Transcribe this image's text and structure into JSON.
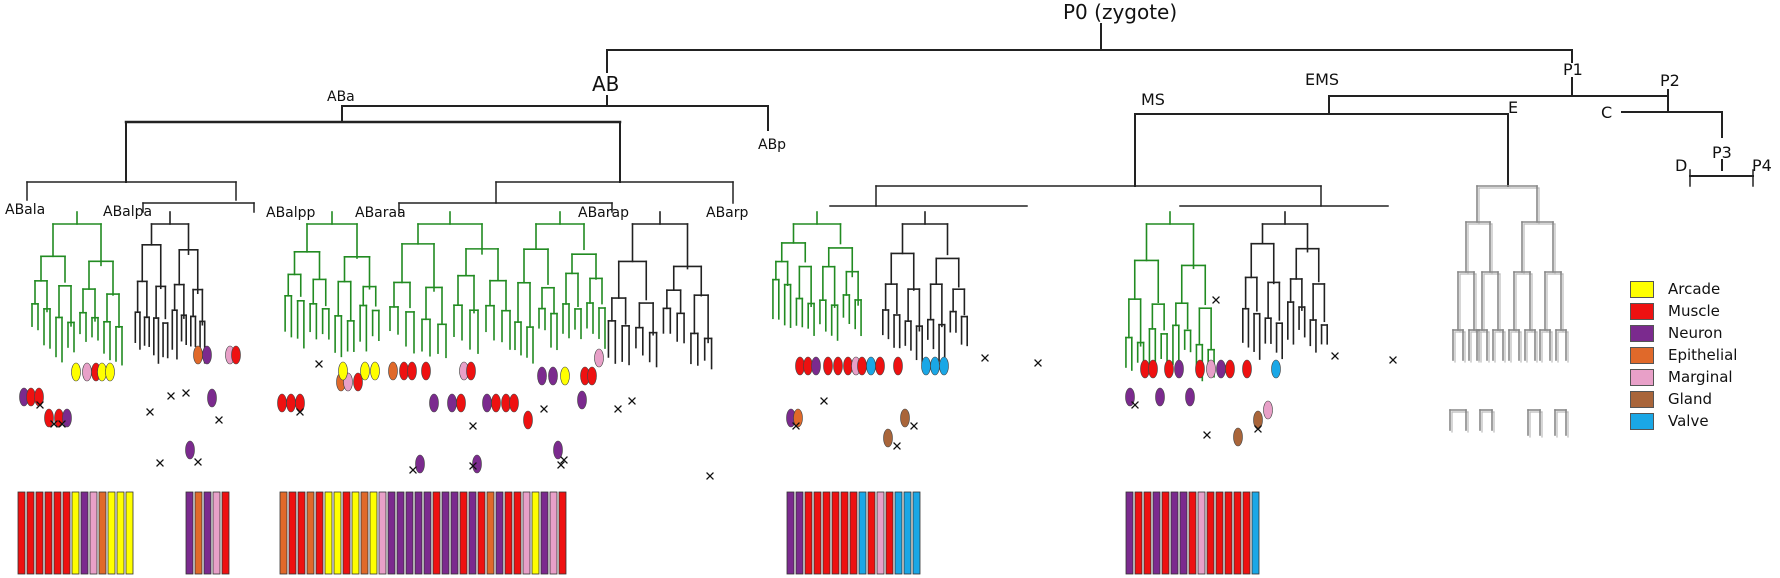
{
  "diagram": {
    "labels": {
      "root": "P0 (zygote)",
      "AB": "AB",
      "P1": "P1",
      "ABa": "ABa",
      "ABp": "ABp",
      "EMS": "EMS",
      "MS": "MS",
      "E": "E",
      "P2": "P2",
      "C": "C",
      "D": "D",
      "P3": "P3",
      "P4": "P4",
      "ABala": "ABala",
      "ABalpa": "ABalpa",
      "ABalpp": "ABalpp",
      "ABaraa": "ABaraa",
      "ABarap": "ABarap",
      "ABarp": "ABarp"
    }
  },
  "legend": [
    {
      "label": "Arcade",
      "color": "#ffff00"
    },
    {
      "label": "Muscle",
      "color": "#ee1111"
    },
    {
      "label": "Neuron",
      "color": "#7b2a8e"
    },
    {
      "label": "Epithelial",
      "color": "#e0692a"
    },
    {
      "label": "Marginal",
      "color": "#e8a0c8"
    },
    {
      "label": "Gland",
      "color": "#a9653a"
    },
    {
      "label": "Valve",
      "color": "#1aa7e6"
    }
  ],
  "bar_groups": [
    {
      "cells": [
        "Muscle",
        "Muscle",
        "Muscle",
        "Muscle",
        "Muscle",
        "Muscle",
        "Arcade",
        "Neuron",
        "Marginal",
        "Epithelial",
        "Arcade",
        "Arcade",
        "Arcade"
      ]
    },
    {
      "cells": [
        "Neuron",
        "Epithelial",
        "Neuron",
        "Marginal",
        "Muscle"
      ]
    },
    {
      "cells": [
        "Epithelial",
        "Muscle",
        "Muscle",
        "Epithelial",
        "Muscle",
        "Arcade",
        "Arcade",
        "Muscle",
        "Arcade",
        "Epithelial",
        "Arcade",
        "Marginal",
        "Neuron",
        "Neuron",
        "Neuron",
        "Neuron",
        "Neuron",
        "Muscle",
        "Neuron",
        "Neuron",
        "Muscle",
        "Neuron",
        "Muscle",
        "Epithelial",
        "Neuron",
        "Muscle",
        "Muscle",
        "Marginal",
        "Arcade",
        "Neuron",
        "Marginal",
        "Muscle"
      ]
    },
    {
      "cells": [
        "Neuron",
        "Neuron",
        "Muscle",
        "Muscle",
        "Muscle",
        "Muscle",
        "Muscle",
        "Muscle",
        "Valve",
        "Muscle",
        "Marginal",
        "Muscle",
        "Valve",
        "Valve",
        "Valve"
      ]
    },
    {
      "cells": [
        "Neuron",
        "Muscle",
        "Muscle",
        "Neuron",
        "Muscle",
        "Neuron",
        "Neuron",
        "Muscle",
        "Marginal",
        "Muscle",
        "Muscle",
        "Muscle",
        "Muscle",
        "Muscle",
        "Valve"
      ]
    }
  ]
}
